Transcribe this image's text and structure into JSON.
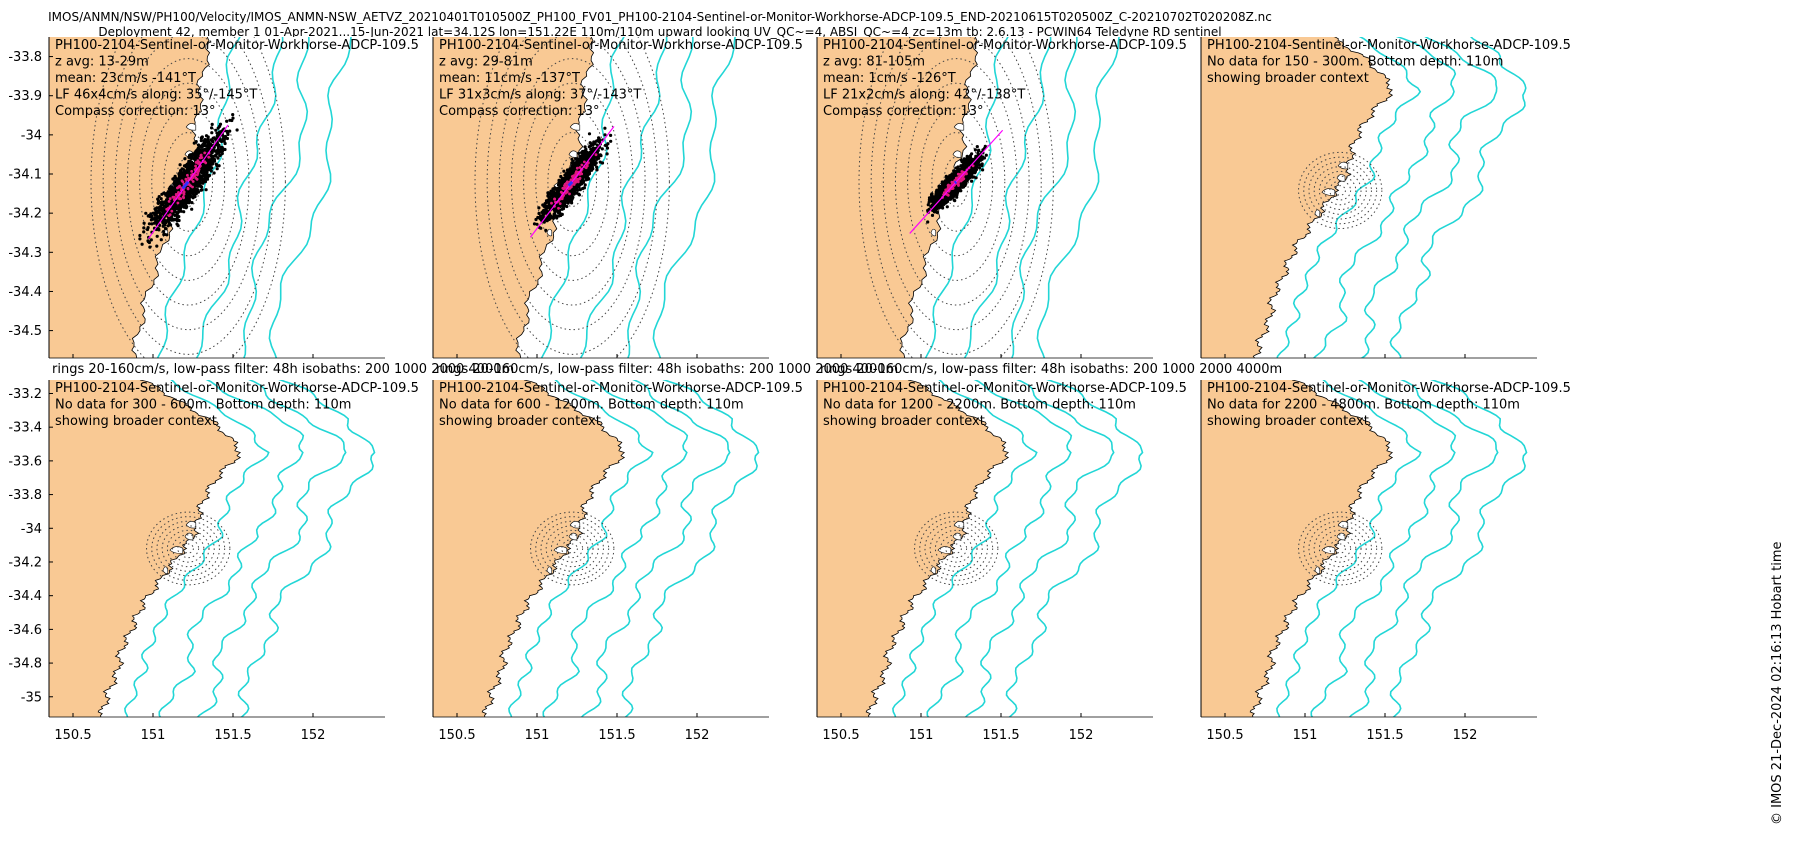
{
  "figure": {
    "title_line1": "IMOS/ANMN/NSW/PH100/Velocity/IMOS_ANMN-NSW_AETVZ_20210401T010500Z_PH100_FV01_PH100-2104-Sentinel-or-Monitor-Workhorse-ADCP-109.5_END-20210615T020500Z_C-20210702T020208Z.nc",
    "title_line2": "Deployment 42, member 1 01-Apr-2021...15-Jun-2021 lat=34.12S lon=151.22E 110m/110m upward looking UV_QC~=4, ABSI_QC~=4 zc=13m tb: 2.6.13 - PCWIN64 Teledyne RD sentinel",
    "footer": "© IMOS 21-Dec-2024 02:16:13 Hobart time",
    "caption": "rings 20-160cm/s, low-pass filter: 48h isobaths: 200 1000 2000 4000m"
  },
  "colors": {
    "land": "#f9c994",
    "sea": "#ffffff",
    "isobath": "#22d6d6",
    "scatter": "#000000",
    "lowpass": "#e0197f",
    "principal_axis": "#ff00ff",
    "mean": "#3030ff",
    "rings": "#444444"
  },
  "chart_data": [
    {
      "type": "scatter",
      "panel": 1,
      "xlim": [
        150.35,
        152.45
      ],
      "ylim": [
        -34.57,
        -33.75
      ],
      "x_ticks": [
        150.5,
        151,
        151.5,
        152
      ],
      "y_ticks": [
        -33.8,
        -33.9,
        -34,
        -34.1,
        -34.2,
        -34.3,
        -34.4,
        -34.5
      ],
      "show_x_labels": false,
      "show_y_labels": true,
      "lines": [
        "PH100-2104-Sentinel-or-Monitor-Workhorse-ADCP-109.5",
        "z avg: 13-29m",
        "mean: 23cm/s -141°T",
        "LF 46x4cm/s along: 35°/-145°T",
        "Compass correction: 13°"
      ],
      "has_data": true,
      "center": [
        151.22,
        -34.12
      ],
      "rings_km": [
        7,
        14,
        21,
        28,
        35,
        42,
        49,
        56
      ],
      "axis_angle_deg": 35,
      "axis_half_len_km": 40,
      "cloud_half_len_km": 30,
      "cloud_width_km": 4.2,
      "mean_dir_deg": -141,
      "mean_len_km": 5,
      "isobath_m": [
        200,
        1000,
        2000,
        4000
      ],
      "show_caption": true
    },
    {
      "type": "scatter",
      "panel": 2,
      "xlim": [
        150.35,
        152.45
      ],
      "ylim": [
        -34.57,
        -33.75
      ],
      "x_ticks": [
        150.5,
        151,
        151.5,
        152
      ],
      "y_ticks": [
        -33.8,
        -33.9,
        -34,
        -34.1,
        -34.2,
        -34.3,
        -34.4,
        -34.5
      ],
      "show_x_labels": false,
      "show_y_labels": false,
      "lines": [
        "PH100-2104-Sentinel-or-Monitor-Workhorse-ADCP-109.5",
        "z avg: 29-81m",
        "mean: 11cm/s -137°T",
        "LF 31x3cm/s along: 37°/-143°T",
        "Compass correction: 13°"
      ],
      "has_data": true,
      "center": [
        151.22,
        -34.12
      ],
      "rings_km": [
        7,
        14,
        21,
        28,
        35,
        42,
        49,
        56
      ],
      "axis_angle_deg": 37,
      "axis_half_len_km": 40,
      "cloud_half_len_km": 22,
      "cloud_width_km": 3.2,
      "mean_dir_deg": -137,
      "mean_len_km": 3,
      "isobath_m": [
        200,
        1000,
        2000,
        4000
      ],
      "show_caption": true
    },
    {
      "type": "scatter",
      "panel": 3,
      "xlim": [
        150.35,
        152.45
      ],
      "ylim": [
        -34.57,
        -33.75
      ],
      "x_ticks": [
        150.5,
        151,
        151.5,
        152
      ],
      "y_ticks": [
        -33.8,
        -33.9,
        -34,
        -34.1,
        -34.2,
        -34.3,
        -34.4,
        -34.5
      ],
      "show_x_labels": false,
      "show_y_labels": false,
      "lines": [
        "PH100-2104-Sentinel-or-Monitor-Workhorse-ADCP-109.5",
        "z avg: 81-105m",
        "mean: 1cm/s -126°T",
        "LF 21x2cm/s along: 42°/-138°T",
        "Compass correction: 13°"
      ],
      "has_data": true,
      "center": [
        151.22,
        -34.12
      ],
      "rings_km": [
        7,
        14,
        21,
        28,
        35,
        42,
        49,
        56
      ],
      "axis_angle_deg": 42,
      "axis_half_len_km": 40,
      "cloud_half_len_km": 17,
      "cloud_width_km": 2.6,
      "mean_dir_deg": -126,
      "mean_len_km": 1,
      "isobath_m": [
        200,
        1000,
        2000,
        4000
      ],
      "show_caption": true
    },
    {
      "type": "scatter",
      "panel": 4,
      "xlim": [
        150.35,
        152.45
      ],
      "ylim": [
        -35.07,
        -33.25
      ],
      "x_ticks": [
        150.5,
        151,
        151.5,
        152
      ],
      "y_ticks": [],
      "show_x_labels": false,
      "show_y_labels": false,
      "lines": [
        "PH100-2104-Sentinel-or-Monitor-Workhorse-ADCP-109.5",
        "No data for 150 - 300m. Bottom depth: 110m",
        "showing broader context"
      ],
      "has_data": false,
      "center": [
        151.22,
        -34.12
      ],
      "rings_km": [
        3,
        6,
        9,
        12,
        15,
        18,
        21,
        24
      ],
      "isobath_m": [
        200,
        1000,
        2000,
        4000
      ],
      "show_caption": false
    },
    {
      "type": "scatter",
      "panel": 5,
      "xlim": [
        150.35,
        152.45
      ],
      "ylim": [
        -35.12,
        -33.12
      ],
      "x_ticks": [
        150.5,
        151,
        151.5,
        152
      ],
      "y_ticks": [
        -33.2,
        -33.4,
        -33.6,
        -33.8,
        -34,
        -34.2,
        -34.4,
        -34.6,
        -34.8,
        -35
      ],
      "show_x_labels": true,
      "show_y_labels": true,
      "lines": [
        "PH100-2104-Sentinel-or-Monitor-Workhorse-ADCP-109.5",
        "No data for 300 - 600m. Bottom depth: 110m",
        "showing broader context"
      ],
      "has_data": false,
      "center": [
        151.22,
        -34.12
      ],
      "rings_km": [
        3,
        6,
        9,
        12,
        15,
        18,
        21,
        24
      ],
      "isobath_m": [
        200,
        1000,
        2000,
        4000
      ],
      "show_caption": false
    },
    {
      "type": "scatter",
      "panel": 6,
      "xlim": [
        150.35,
        152.45
      ],
      "ylim": [
        -35.12,
        -33.12
      ],
      "x_ticks": [
        150.5,
        151,
        151.5,
        152
      ],
      "y_ticks": [],
      "show_x_labels": true,
      "show_y_labels": false,
      "lines": [
        "PH100-2104-Sentinel-or-Monitor-Workhorse-ADCP-109.5",
        "No data for 600 - 1200m. Bottom depth: 110m",
        "showing broader context"
      ],
      "has_data": false,
      "center": [
        151.22,
        -34.12
      ],
      "rings_km": [
        3,
        6,
        9,
        12,
        15,
        18,
        21,
        24
      ],
      "isobath_m": [
        200,
        1000,
        2000,
        4000
      ],
      "show_caption": false
    },
    {
      "type": "scatter",
      "panel": 7,
      "xlim": [
        150.35,
        152.45
      ],
      "ylim": [
        -35.12,
        -33.12
      ],
      "x_ticks": [
        150.5,
        151,
        151.5,
        152
      ],
      "y_ticks": [],
      "show_x_labels": true,
      "show_y_labels": false,
      "lines": [
        "PH100-2104-Sentinel-or-Monitor-Workhorse-ADCP-109.5",
        "No data for 1200 - 2200m. Bottom depth: 110m",
        "showing broader context"
      ],
      "has_data": false,
      "center": [
        151.22,
        -34.12
      ],
      "rings_km": [
        3,
        6,
        9,
        12,
        15,
        18,
        21,
        24
      ],
      "isobath_m": [
        200,
        1000,
        2000,
        4000
      ],
      "show_caption": false
    },
    {
      "type": "scatter",
      "panel": 8,
      "xlim": [
        150.35,
        152.45
      ],
      "ylim": [
        -35.12,
        -33.12
      ],
      "x_ticks": [
        150.5,
        151,
        151.5,
        152
      ],
      "y_ticks": [],
      "show_x_labels": true,
      "show_y_labels": false,
      "lines": [
        "PH100-2104-Sentinel-or-Monitor-Workhorse-ADCP-109.5",
        "No data for 2200 - 4800m. Bottom depth: 110m",
        "showing broader context"
      ],
      "has_data": false,
      "center": [
        151.22,
        -34.12
      ],
      "rings_km": [
        3,
        6,
        9,
        12,
        15,
        18,
        21,
        24
      ],
      "isobath_m": [
        200,
        1000,
        2000,
        4000
      ],
      "show_caption": false
    }
  ]
}
